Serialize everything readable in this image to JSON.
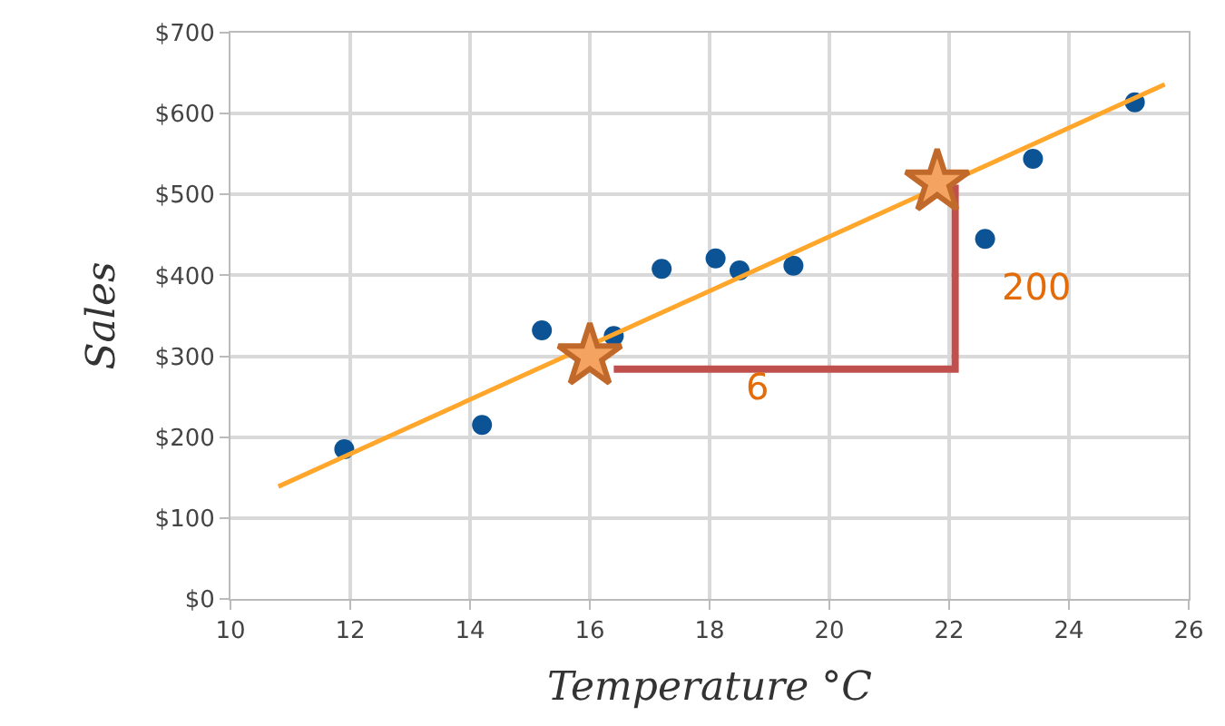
{
  "chart_data": {
    "type": "scatter",
    "xlabel": "Temperature °C",
    "ylabel": "Sales",
    "xlim": [
      10,
      26
    ],
    "xticks": [
      10,
      12,
      14,
      16,
      18,
      20,
      22,
      24,
      26
    ],
    "ylim": [
      0,
      700
    ],
    "yticks": [
      {
        "value": 0,
        "label": "$0"
      },
      {
        "value": 100,
        "label": "$100"
      },
      {
        "value": 200,
        "label": "$200"
      },
      {
        "value": 300,
        "label": "$300"
      },
      {
        "value": 400,
        "label": "$400"
      },
      {
        "value": 500,
        "label": "$500"
      },
      {
        "value": 600,
        "label": "$600"
      },
      {
        "value": 700,
        "label": "$700"
      }
    ],
    "grid": true,
    "marker": "circle",
    "series": [
      {
        "color": "#0b5394",
        "x": [
          11.9,
          14.2,
          15.2,
          16.4,
          17.2,
          18.1,
          18.5,
          19.4,
          22.1,
          22.6,
          23.4,
          25.1
        ],
        "values": [
          185,
          215,
          332,
          325,
          408,
          421,
          406,
          412,
          null,
          445,
          544,
          614
        ]
      },
      {
        "type": "line",
        "color": "#ffa62b",
        "marker": "none",
        "x": [
          10.8,
          25.6
        ],
        "values": [
          139,
          636
        ]
      },
      {
        "type": "line",
        "color": "#c0504d",
        "marker": "none",
        "x": [
          16.4,
          22.1,
          22.1
        ],
        "values": [
          284,
          284,
          512
        ]
      },
      {
        "color": "#c0692a",
        "marker": "star",
        "x": [
          16,
          21.8
        ],
        "values": [
          300,
          515
        ]
      }
    ],
    "annotations": [
      "6",
      "200"
    ]
  }
}
